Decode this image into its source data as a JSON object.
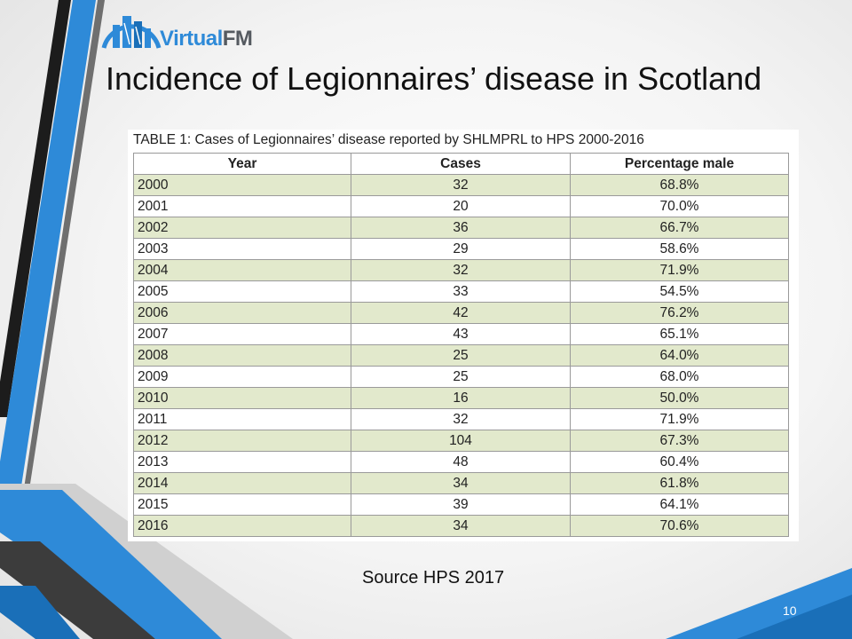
{
  "logo": {
    "word_part1": "Virtual",
    "word_part2": "FM"
  },
  "slide": {
    "title": "Incidence of Legionnaires’ disease in Scotland",
    "source": "Source HPS 2017",
    "page_number": "10"
  },
  "table": {
    "caption": "TABLE 1: Cases of Legionnaires’ disease reported by SHLMPRL to HPS 2000-2016",
    "headers": [
      "Year",
      "Cases",
      "Percentage male"
    ],
    "rows": [
      [
        "2000",
        "32",
        "68.8%"
      ],
      [
        "2001",
        "20",
        "70.0%"
      ],
      [
        "2002",
        "36",
        "66.7%"
      ],
      [
        "2003",
        "29",
        "58.6%"
      ],
      [
        "2004",
        "32",
        "71.9%"
      ],
      [
        "2005",
        "33",
        "54.5%"
      ],
      [
        "2006",
        "42",
        "76.2%"
      ],
      [
        "2007",
        "43",
        "65.1%"
      ],
      [
        "2008",
        "25",
        "64.0%"
      ],
      [
        "2009",
        "25",
        "68.0%"
      ],
      [
        "2010",
        "16",
        "50.0%"
      ],
      [
        "2011",
        "32",
        "71.9%"
      ],
      [
        "2012",
        "104",
        "67.3%"
      ],
      [
        "2013",
        "48",
        "60.4%"
      ],
      [
        "2014",
        "34",
        "61.8%"
      ],
      [
        "2015",
        "39",
        "64.1%"
      ],
      [
        "2016",
        "34",
        "70.6%"
      ]
    ]
  },
  "colors": {
    "accent_blue": "#2e8ad8",
    "accent_dark": "#4a4a4a",
    "row_alt": "#e2e9cc"
  }
}
